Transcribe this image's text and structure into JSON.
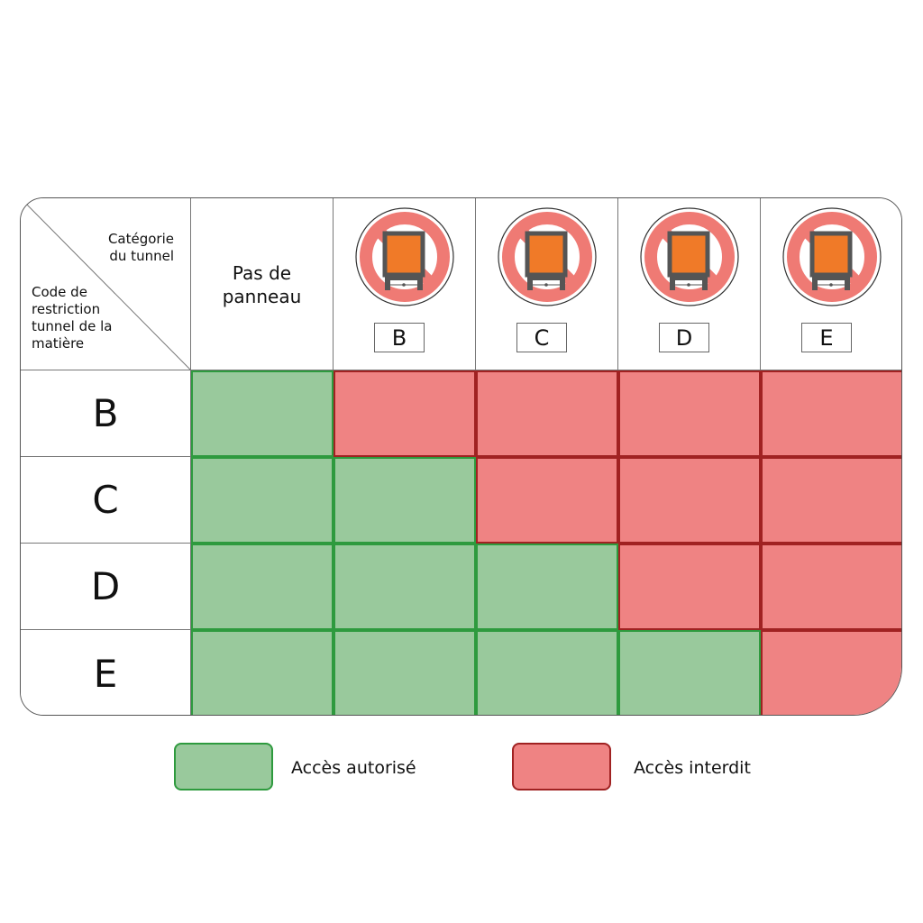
{
  "corner": {
    "column_header_label": "Catégorie\ndu tunnel",
    "row_header_label": "Code de\nrestriction\ntunnel de la\n matière"
  },
  "columns": [
    {
      "id": "none",
      "label": "Pas de\npanneau",
      "sign": false
    },
    {
      "id": "B",
      "label": "B",
      "sign": true
    },
    {
      "id": "C",
      "label": "C",
      "sign": true
    },
    {
      "id": "D",
      "label": "D",
      "sign": true
    },
    {
      "id": "E",
      "label": "E",
      "sign": true
    }
  ],
  "rows": [
    {
      "label": "B",
      "access": [
        "allowed",
        "forbidden",
        "forbidden",
        "forbidden",
        "forbidden"
      ]
    },
    {
      "label": "C",
      "access": [
        "allowed",
        "allowed",
        "forbidden",
        "forbidden",
        "forbidden"
      ]
    },
    {
      "label": "D",
      "access": [
        "allowed",
        "allowed",
        "allowed",
        "forbidden",
        "forbidden"
      ]
    },
    {
      "label": "E",
      "access": [
        "allowed",
        "allowed",
        "allowed",
        "allowed",
        "forbidden"
      ]
    }
  ],
  "sign_icon": "no-dangerous-goods-vehicles-icon",
  "colors": {
    "allowed_fill": "#99c99c",
    "allowed_border": "#2e9a3e",
    "forbidden_fill": "#ef8383",
    "forbidden_border": "#a02222",
    "sign_plate": "#f07a28"
  },
  "legend": {
    "allowed_label": "Accès autorisé",
    "forbidden_label": "Accès interdit"
  }
}
